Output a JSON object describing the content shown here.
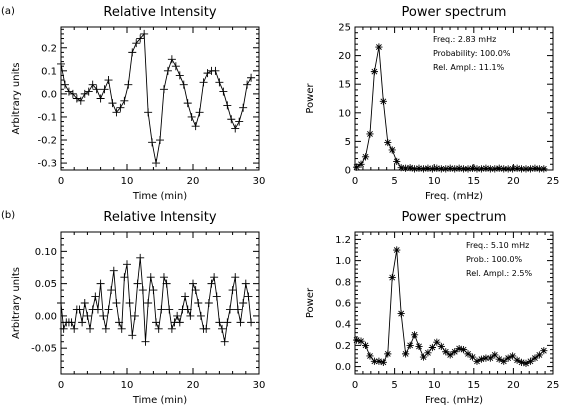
{
  "panel_labels": [
    "(a)",
    "(b)"
  ],
  "chart_data": [
    {
      "type": "line",
      "title": "Relative Intensity",
      "xlabel": "Time (min)",
      "ylabel": "Arbitrary units",
      "xlim": [
        0,
        30
      ],
      "ylim": [
        -0.33,
        0.29
      ],
      "xticks": [
        0,
        10,
        20,
        30
      ],
      "yticks": [
        -0.3,
        -0.2,
        -0.1,
        0.0,
        0.1,
        0.2
      ],
      "xtick_labels": [
        "0",
        "10",
        "20",
        "30"
      ],
      "ytick_labels": [
        "-0.3",
        "-0.2",
        "-0.1",
        "0.0",
        "0.1",
        "0.2"
      ],
      "marker": "plus",
      "color": "#000000",
      "series": [
        {
          "x": [
            0,
            0.6,
            1.2,
            1.8,
            2.4,
            3.0,
            3.6,
            4.2,
            4.8,
            5.4,
            6.0,
            6.6,
            7.2,
            7.8,
            8.4,
            9.0,
            9.6,
            10.2,
            10.8,
            11.4,
            12.0,
            12.6,
            13.2,
            13.8,
            14.4,
            15.0,
            15.6,
            16.2,
            16.8,
            17.4,
            18.0,
            18.6,
            19.2,
            19.8,
            20.4,
            21.0,
            21.6,
            22.2,
            22.8,
            23.4,
            24.0,
            24.6,
            25.2,
            25.8,
            26.4,
            27.0,
            27.6,
            28.2,
            28.8
          ],
          "y": [
            0.13,
            0.04,
            0.01,
            0.0,
            -0.02,
            -0.03,
            0.0,
            0.01,
            0.04,
            0.02,
            -0.02,
            0.02,
            0.06,
            -0.04,
            -0.08,
            -0.06,
            -0.03,
            0.04,
            0.18,
            0.22,
            0.24,
            0.26,
            -0.08,
            -0.21,
            -0.3,
            -0.2,
            0.02,
            0.1,
            0.15,
            0.12,
            0.08,
            0.04,
            -0.04,
            -0.1,
            -0.14,
            -0.08,
            0.05,
            0.09,
            0.1,
            0.1,
            0.05,
            0.01,
            -0.05,
            -0.11,
            -0.15,
            -0.12,
            -0.06,
            0.04,
            0.07
          ]
        }
      ]
    },
    {
      "type": "line",
      "title": "Power spectrum",
      "xlabel": "Freq. (mHz)",
      "ylabel": "Power",
      "xlim": [
        0,
        25
      ],
      "ylim": [
        0,
        25
      ],
      "xticks": [
        0,
        5,
        10,
        15,
        20,
        25
      ],
      "yticks": [
        0,
        5,
        10,
        15,
        20,
        25
      ],
      "xtick_labels": [
        "0",
        "5",
        "10",
        "15",
        "20",
        "25"
      ],
      "ytick_labels": [
        "0",
        "5",
        "10",
        "15",
        "20",
        "25"
      ],
      "marker": "asterisk",
      "color": "#000000",
      "annotations": [
        "Freq.: 2.83 mHz",
        "Probability: 100.0%",
        "Rel. Ampl.: 11.1%"
      ],
      "series": [
        {
          "x": [
            0.2,
            0.76,
            1.33,
            1.89,
            2.45,
            3.02,
            3.58,
            4.14,
            4.7,
            5.27,
            5.83,
            6.39,
            6.96,
            7.52,
            8.08,
            8.65,
            9.21,
            9.77,
            10.33,
            10.9,
            11.46,
            12.02,
            12.59,
            13.15,
            13.71,
            14.27,
            14.84,
            15.4,
            15.96,
            16.53,
            17.09,
            17.65,
            18.21,
            18.78,
            19.34,
            19.9,
            20.47,
            21.03,
            21.59,
            22.15,
            22.72,
            23.28,
            23.84
          ],
          "y": [
            0.5,
            1.0,
            2.3,
            6.3,
            17.2,
            21.5,
            12.0,
            4.8,
            3.5,
            1.5,
            0.4,
            0.3,
            0.4,
            0.2,
            0.3,
            0.2,
            0.3,
            0.2,
            0.3,
            0.2,
            0.2,
            0.3,
            0.2,
            0.3,
            0.2,
            0.2,
            0.3,
            0.2,
            0.2,
            0.3,
            0.2,
            0.2,
            0.3,
            0.2,
            0.2,
            0.2,
            0.3,
            0.2,
            0.2,
            0.2,
            0.3,
            0.2,
            0.2
          ]
        }
      ]
    },
    {
      "type": "line",
      "title": "Relative Intensity",
      "xlabel": "Time (min)",
      "ylabel": "Arbitrary units",
      "xlim": [
        0,
        30
      ],
      "ylim": [
        -0.09,
        0.13
      ],
      "xticks": [
        0,
        10,
        20,
        30
      ],
      "yticks": [
        -0.05,
        0.0,
        0.05,
        0.1
      ],
      "xtick_labels": [
        "0",
        "10",
        "20",
        "30"
      ],
      "ytick_labels": [
        "-0.05",
        "0.00",
        "0.05",
        "0.10"
      ],
      "marker": "plus",
      "color": "#000000",
      "series": [
        {
          "x": [
            0,
            0.4,
            0.8,
            1.2,
            1.6,
            2.0,
            2.4,
            2.8,
            3.2,
            3.6,
            4.0,
            4.4,
            4.8,
            5.2,
            5.6,
            6.0,
            6.4,
            6.8,
            7.2,
            7.6,
            8.0,
            8.4,
            8.8,
            9.2,
            9.6,
            10.0,
            10.4,
            10.8,
            11.2,
            11.6,
            12.0,
            12.4,
            12.8,
            13.2,
            13.6,
            14.0,
            14.4,
            14.8,
            15.2,
            15.6,
            16.0,
            16.4,
            16.8,
            17.2,
            17.6,
            18.0,
            18.4,
            18.8,
            19.2,
            19.6,
            20.0,
            20.4,
            20.8,
            21.2,
            21.6,
            22.0,
            22.4,
            22.8,
            23.2,
            23.6,
            24.0,
            24.4,
            24.8,
            25.2,
            25.6,
            26.0,
            26.4,
            26.8,
            27.2,
            27.6,
            28.0,
            28.4,
            28.8
          ],
          "y": [
            0.02,
            -0.02,
            -0.01,
            -0.01,
            -0.01,
            -0.02,
            0.01,
            0.01,
            -0.01,
            0.02,
            0.0,
            -0.02,
            0.01,
            0.03,
            0.01,
            0.05,
            0.0,
            -0.02,
            0.01,
            0.04,
            0.07,
            0.02,
            -0.01,
            -0.02,
            0.06,
            0.08,
            0.02,
            -0.03,
            0.0,
            0.05,
            0.09,
            0.04,
            -0.04,
            0.02,
            0.06,
            0.04,
            -0.01,
            -0.02,
            0.01,
            0.06,
            0.05,
            0.01,
            -0.02,
            -0.01,
            0.0,
            -0.01,
            0.01,
            0.03,
            0.01,
            0.0,
            0.05,
            0.04,
            0.02,
            0.0,
            -0.02,
            -0.02,
            0.02,
            0.05,
            0.06,
            0.03,
            -0.01,
            -0.02,
            -0.04,
            -0.01,
            0.01,
            0.04,
            0.06,
            0.01,
            -0.01,
            0.02,
            0.05,
            0.03,
            -0.01
          ]
        }
      ]
    },
    {
      "type": "line",
      "title": "Power spectrum",
      "xlabel": "Freq. (mHz)",
      "ylabel": "Power",
      "xlim": [
        0,
        25
      ],
      "ylim": [
        -0.07,
        1.27
      ],
      "xticks": [
        0,
        5,
        10,
        15,
        20,
        25
      ],
      "yticks": [
        0.0,
        0.2,
        0.4,
        0.6,
        0.8,
        1.0,
        1.2
      ],
      "xtick_labels": [
        "0",
        "5",
        "10",
        "15",
        "20",
        "25"
      ],
      "ytick_labels": [
        "0.0",
        "0.2",
        "0.4",
        "0.6",
        "0.8",
        "1.0",
        "1.2"
      ],
      "marker": "asterisk",
      "color": "#000000",
      "annotations": [
        "Freq.: 5.10 mHz",
        "Prob.: 100.0%",
        "Rel. Ampl.: 2.5%"
      ],
      "series": [
        {
          "x": [
            0.2,
            0.76,
            1.33,
            1.89,
            2.45,
            3.02,
            3.58,
            4.14,
            4.7,
            5.27,
            5.83,
            6.39,
            6.96,
            7.52,
            8.08,
            8.65,
            9.21,
            9.77,
            10.33,
            10.9,
            11.46,
            12.02,
            12.59,
            13.15,
            13.71,
            14.27,
            14.84,
            15.4,
            15.96,
            16.53,
            17.09,
            17.65,
            18.21,
            18.78,
            19.34,
            19.9,
            20.47,
            21.03,
            21.59,
            22.15,
            22.72,
            23.28,
            23.84
          ],
          "y": [
            0.25,
            0.24,
            0.2,
            0.1,
            0.05,
            0.05,
            0.04,
            0.12,
            0.84,
            1.1,
            0.5,
            0.12,
            0.2,
            0.3,
            0.19,
            0.09,
            0.13,
            0.18,
            0.23,
            0.19,
            0.14,
            0.11,
            0.14,
            0.17,
            0.16,
            0.12,
            0.09,
            0.05,
            0.07,
            0.08,
            0.08,
            0.11,
            0.07,
            0.05,
            0.08,
            0.1,
            0.06,
            0.04,
            0.03,
            0.05,
            0.08,
            0.11,
            0.15
          ]
        }
      ]
    }
  ]
}
